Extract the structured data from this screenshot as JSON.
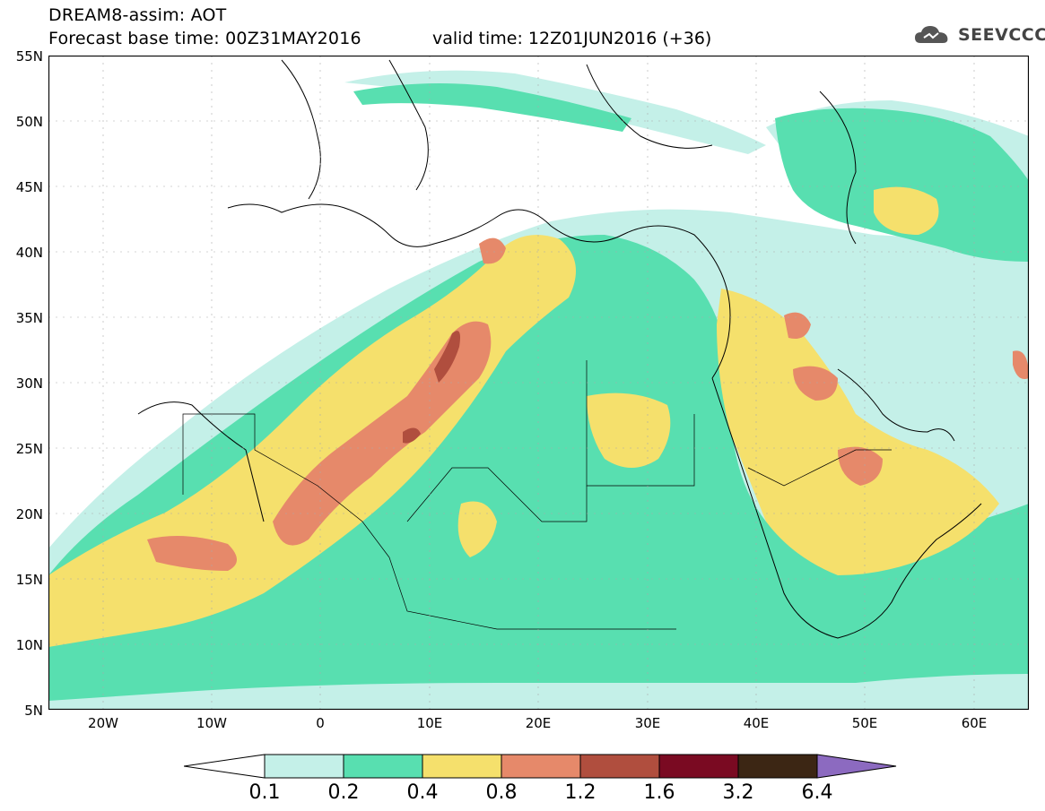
{
  "header": {
    "title": "DREAM8-assim: AOT",
    "base_time": "Forecast base time: 00Z31MAY2016",
    "valid_time": "valid time: 12Z01JUN2016 (+36)",
    "logo_text": "SEEVCCC"
  },
  "axes": {
    "lat_labels": [
      "55N",
      "50N",
      "45N",
      "40N",
      "35N",
      "30N",
      "25N",
      "20N",
      "15N",
      "10N",
      "5N"
    ],
    "lon_labels": [
      "20W",
      "10W",
      "0",
      "10E",
      "20E",
      "30E",
      "40E",
      "50E",
      "60E"
    ],
    "lat_range": [
      5,
      55
    ],
    "lon_range": [
      -25,
      65
    ]
  },
  "colorbar": {
    "labels": [
      "0.1",
      "0.2",
      "0.4",
      "0.8",
      "1.2",
      "1.6",
      "3.2",
      "6.4"
    ],
    "colors": [
      "#c4f0e8",
      "#58dfb0",
      "#f5e06c",
      "#e6896a",
      "#b04e3e",
      "#7a0a22",
      "#3c2614",
      "#8c6ac0"
    ]
  }
}
